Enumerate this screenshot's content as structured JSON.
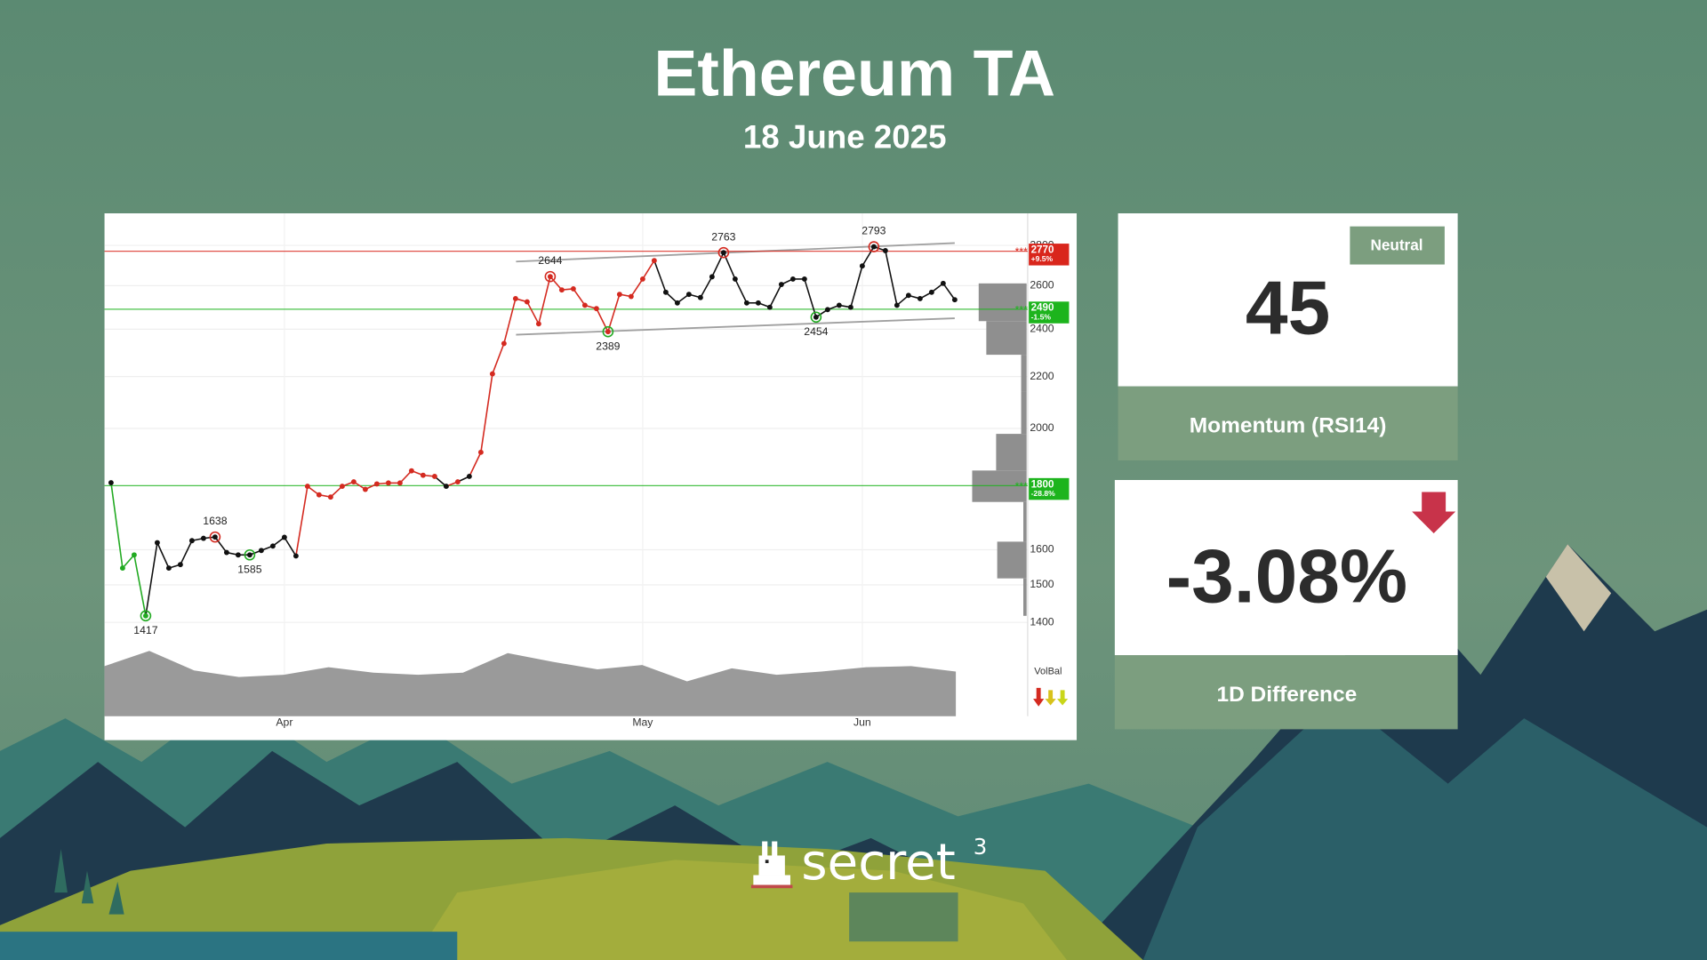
{
  "header": {
    "title": "Ethereum TA",
    "date": "18 June 2025"
  },
  "chart_data": {
    "type": "line",
    "log_scale": true,
    "grid": true,
    "ylim": [
      1350,
      2970
    ],
    "yticks": [
      1400,
      1500,
      1600,
      2000,
      2200,
      2400,
      2600,
      2800
    ],
    "categories": [
      null,
      null,
      null,
      null,
      null,
      null,
      null,
      null,
      null,
      null,
      null,
      null,
      null,
      null,
      null,
      "Apr",
      null,
      null,
      null,
      null,
      null,
      null,
      null,
      null,
      null,
      null,
      null,
      null,
      null,
      null,
      null,
      null,
      null,
      null,
      null,
      null,
      null,
      null,
      null,
      null,
      null,
      null,
      null,
      null,
      null,
      null,
      "May",
      null,
      null,
      null,
      null,
      null,
      null,
      null,
      null,
      null,
      null,
      null,
      null,
      null,
      null,
      null,
      null,
      null,
      null,
      "Jun",
      null,
      null,
      null,
      null,
      null,
      null,
      null,
      null
    ],
    "values": [
      1810,
      1547,
      1585,
      1417,
      1621,
      1547,
      1557,
      1627,
      1634,
      1638,
      1592,
      1585,
      1585,
      1598,
      1611,
      1637,
      1582,
      1798,
      1770,
      1763,
      1798,
      1813,
      1788,
      1806,
      1809,
      1809,
      1850,
      1835,
      1831,
      1798,
      1813,
      1831,
      1914,
      2211,
      2338,
      2539,
      2524,
      2424,
      2644,
      2580,
      2585,
      2508,
      2493,
      2389,
      2559,
      2549,
      2632,
      2723,
      2569,
      2519,
      2559,
      2544,
      2643,
      2763,
      2632,
      2519,
      2519,
      2499,
      2606,
      2632,
      2632,
      2454,
      2488,
      2508,
      2499,
      2696,
      2793,
      2773,
      2508,
      2554,
      2539,
      2569,
      2611,
      2534
    ],
    "value_labels": [
      null,
      null,
      null,
      "1417",
      null,
      null,
      null,
      null,
      null,
      "1638",
      null,
      null,
      "1585",
      null,
      null,
      null,
      null,
      null,
      null,
      null,
      null,
      null,
      null,
      null,
      null,
      null,
      null,
      null,
      null,
      null,
      null,
      null,
      null,
      null,
      null,
      null,
      null,
      null,
      "2644",
      null,
      null,
      null,
      null,
      "2389",
      null,
      null,
      null,
      null,
      null,
      null,
      null,
      null,
      null,
      "2763",
      null,
      null,
      null,
      null,
      null,
      null,
      null,
      "2454",
      null,
      null,
      null,
      null,
      "2793",
      null,
      null,
      null,
      null,
      null,
      null,
      null
    ],
    "point_colors": [
      "#111111",
      "#22aa22",
      "#22aa22",
      "#22aa22",
      "#111111",
      "#111111",
      "#111111",
      "#111111",
      "#111111",
      "#111111",
      "#111111",
      "#111111",
      "#111111",
      "#111111",
      "#111111",
      "#111111",
      "#111111",
      "#d42a20",
      "#d42a20",
      "#d42a20",
      "#d42a20",
      "#d42a20",
      "#d42a20",
      "#d42a20",
      "#d42a20",
      "#d42a20",
      "#d42a20",
      "#d42a20",
      "#d42a20",
      "#111111",
      "#d42a20",
      "#111111",
      "#d42a20",
      "#d42a20",
      "#d42a20",
      "#d42a20",
      "#d42a20",
      "#d42a20",
      "#d42a20",
      "#d42a20",
      "#d42a20",
      "#d42a20",
      "#d42a20",
      "#d42a20",
      "#d42a20",
      "#d42a20",
      "#d42a20",
      "#d42a20",
      "#111111",
      "#111111",
      "#111111",
      "#111111",
      "#111111",
      "#111111",
      "#111111",
      "#111111",
      "#111111",
      "#111111",
      "#111111",
      "#111111",
      "#111111",
      "#111111",
      "#111111",
      "#111111",
      "#111111",
      "#111111",
      "#111111",
      "#111111",
      "#111111",
      "#111111",
      "#111111",
      "#111111",
      "#111111",
      "#111111"
    ],
    "trend_lines": [
      {
        "values": [
          2718,
          2812
        ]
      },
      {
        "values": [
          2376,
          2449
        ]
      }
    ],
    "levels": [
      {
        "value": 2770,
        "change": "+9.5%",
        "marker": "***",
        "color": "#d9261c"
      },
      {
        "value": 2490,
        "change": "-1.5%",
        "marker": "***",
        "color": "#1db41d"
      },
      {
        "value": 1800,
        "change": "-28.8%",
        "marker": "***",
        "color": "#1db41d"
      }
    ],
    "volume_profile": {
      "bins": [
        1417,
        1518,
        1624,
        1747,
        1851,
        1980,
        2140,
        2290,
        2436,
        2611
      ],
      "values": [
        3,
        27,
        3,
        50,
        28,
        5,
        5,
        37,
        44
      ]
    },
    "volume": {
      "label": "VolBal",
      "values": [
        46,
        60,
        42,
        36,
        38,
        45,
        40,
        38,
        40,
        58,
        50,
        43,
        47,
        32,
        44,
        38,
        41,
        45,
        46,
        41
      ]
    }
  },
  "rsi": {
    "badge": "Neutral",
    "value": 45,
    "label": "Momentum (RSI14)"
  },
  "difference": {
    "value": "-3.08%",
    "label": "1D Difference"
  },
  "brand": {
    "name": "secret",
    "superscript": "3"
  }
}
